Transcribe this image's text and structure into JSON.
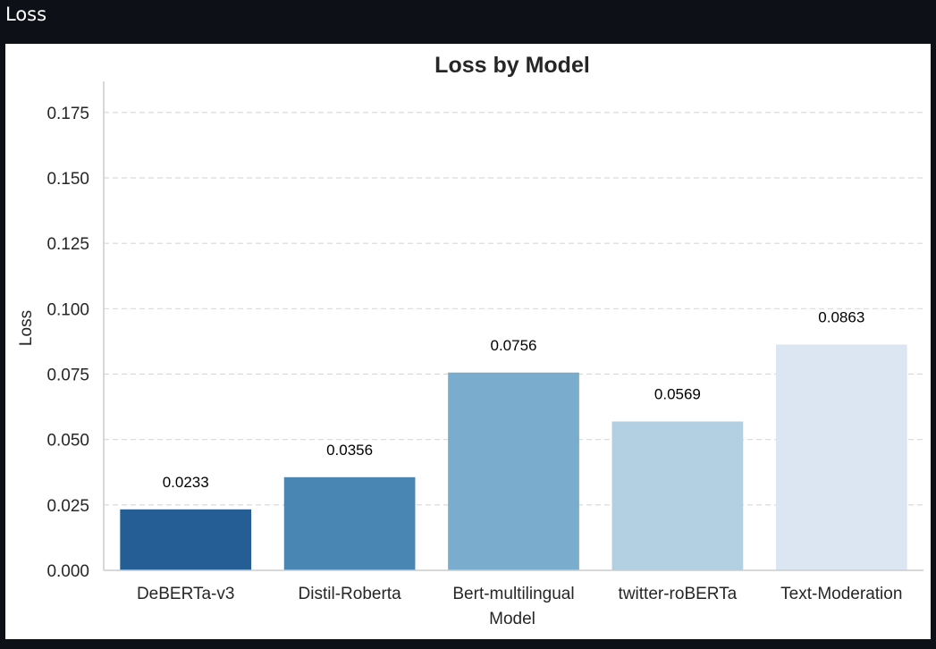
{
  "window": {
    "title": "Loss"
  },
  "chart_data": {
    "type": "bar",
    "title": "Loss by Model",
    "xlabel": "Model",
    "ylabel": "Loss",
    "categories": [
      "DeBERTa-v3",
      "Distil-Roberta",
      "Bert-multilingual",
      "twitter-roBERTa",
      "Text-Moderation"
    ],
    "values": [
      0.0233,
      0.0356,
      0.0756,
      0.0569,
      0.0863
    ],
    "data_labels": [
      "0.0233",
      "0.0356",
      "0.0756",
      "0.0569",
      "0.0863"
    ],
    "colors": [
      "#255d95",
      "#4a86b4",
      "#7aadcd",
      "#b3cfe2",
      "#dbe6f2"
    ],
    "ylim": [
      0,
      0.1869
    ],
    "yticks": [
      0,
      0.025,
      0.05,
      0.075,
      0.1,
      0.125,
      0.15,
      0.175
    ],
    "ytick_labels": [
      "0.000",
      "0.025",
      "0.050",
      "0.075",
      "0.100",
      "0.125",
      "0.150",
      "0.175"
    ],
    "grid": "y-dashed",
    "legend": "none"
  }
}
